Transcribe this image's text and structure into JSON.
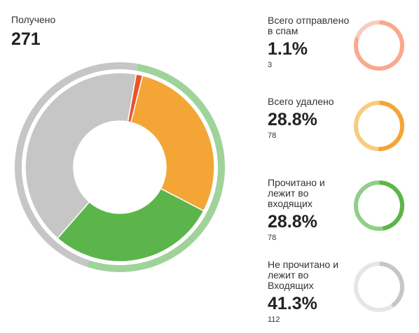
{
  "header": {
    "label": "Получено",
    "value": "271"
  },
  "chart_data": {
    "type": "pie",
    "variant": "nested-donut",
    "total": 271,
    "categories": [
      "Всего отправлено в спам",
      "Всего удалено",
      "Прочитано и лежит во входящих",
      "Не прочитано и лежит во Входящих"
    ],
    "values": [
      3,
      78,
      78,
      112
    ],
    "percents": [
      1.1,
      28.8,
      28.8,
      41.3
    ],
    "colors": [
      "#e8532a",
      "#f3a536",
      "#5cb54a",
      "#c6c6c6"
    ],
    "outer_ring": [
      {
        "values_share": 0.523,
        "color": "#9fd39a"
      },
      {
        "values_share": 0.477,
        "color": "#c6c6c6"
      }
    ],
    "title": "",
    "xlabel": "",
    "ylabel": ""
  },
  "stats": [
    {
      "label": "Всего отправлено в спам",
      "pct": "1.1%",
      "count": "3",
      "fraction": 0.8,
      "color_main": "#f9a98e",
      "color_track": "#fccabc"
    },
    {
      "label": "Всего удалено",
      "pct": "28.8%",
      "count": "78",
      "fraction": 0.5,
      "color_main": "#f3a536",
      "color_track": "#f8cb7d"
    },
    {
      "label": "Прочитано и лежит во входящих",
      "pct": "28.8%",
      "count": "78",
      "fraction": 0.47,
      "color_main": "#5cb54a",
      "color_track": "#8fcf86"
    },
    {
      "label": "Не прочитано и лежит во Входящих",
      "pct": "41.3%",
      "count": "112",
      "fraction": 0.4,
      "color_main": "#c6c6c6",
      "color_track": "#e6e6e6"
    }
  ]
}
